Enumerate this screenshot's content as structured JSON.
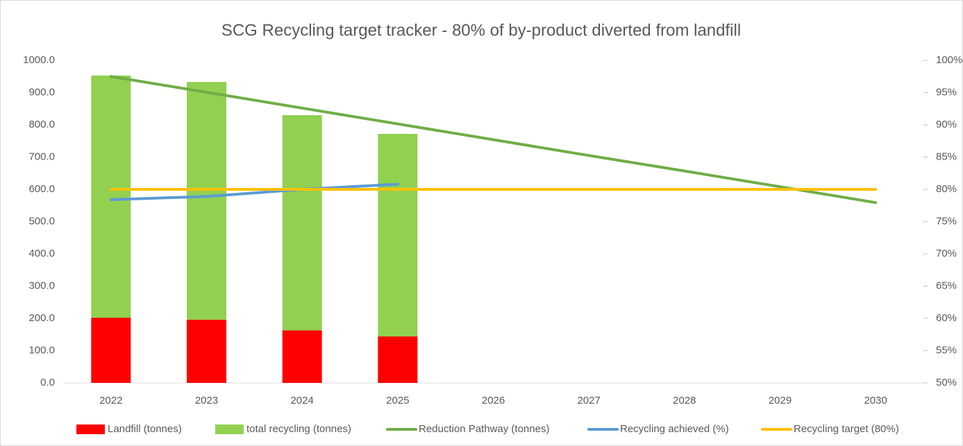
{
  "chart_data": {
    "type": "bar",
    "title": "SCG Recycling target tracker - 80% of by-product diverted from landfill",
    "categories": [
      "2022",
      "2023",
      "2024",
      "2025",
      "2026",
      "2027",
      "2028",
      "2029",
      "2030"
    ],
    "series": [
      {
        "name": "Landfill (tonnes)",
        "type": "bar",
        "color": "#ff0000",
        "values": [
          202,
          196,
          163,
          144,
          null,
          null,
          null,
          null,
          null
        ]
      },
      {
        "name": "total recycling (tonnes)",
        "type": "bar",
        "color": "#92d050",
        "values": [
          751,
          737,
          667,
          628,
          null,
          null,
          null,
          null,
          null
        ]
      },
      {
        "name": "Reduction Pathway (tonnes)",
        "type": "line",
        "color": "#70ad47",
        "values": [
          950,
          901,
          852,
          803,
          754,
          705,
          657,
          608,
          559
        ]
      },
      {
        "name": "Recycling achieved (%)",
        "type": "line",
        "axis": "y2",
        "color": "#5b9bd5",
        "values": [
          78.4,
          78.9,
          80.0,
          80.8,
          null,
          null,
          null,
          null,
          null
        ]
      },
      {
        "name": "Recycling target (80%)",
        "type": "line",
        "axis": "y2",
        "color": "#ffc000",
        "values": [
          80,
          80,
          80,
          80,
          80,
          80,
          80,
          80,
          80
        ]
      }
    ],
    "stacked": true,
    "ylim": [
      0,
      1000
    ],
    "yticks": [
      {
        "value": 0,
        "label": "0.0"
      },
      {
        "value": 100,
        "label": "100.0"
      },
      {
        "value": 200,
        "label": "200.0"
      },
      {
        "value": 300,
        "label": "300.0"
      },
      {
        "value": 400,
        "label": "400.0"
      },
      {
        "value": 500,
        "label": "500.0"
      },
      {
        "value": 600,
        "label": "600.0"
      },
      {
        "value": 700,
        "label": "700.0"
      },
      {
        "value": 800,
        "label": "800.0"
      },
      {
        "value": 900,
        "label": "900.0"
      },
      {
        "value": 1000,
        "label": "1000.0"
      }
    ],
    "y2lim": [
      50,
      100
    ],
    "y2ticks": [
      {
        "value": 50,
        "label": "50%"
      },
      {
        "value": 55,
        "label": "55%"
      },
      {
        "value": 60,
        "label": "60%"
      },
      {
        "value": 65,
        "label": "65%"
      },
      {
        "value": 70,
        "label": "70%"
      },
      {
        "value": 75,
        "label": "75%"
      },
      {
        "value": 80,
        "label": "80%"
      },
      {
        "value": 85,
        "label": "85%"
      },
      {
        "value": 90,
        "label": "90%"
      },
      {
        "value": 95,
        "label": "95%"
      },
      {
        "value": 100,
        "label": "100%"
      }
    ],
    "grid": false,
    "legend": "bottom"
  }
}
